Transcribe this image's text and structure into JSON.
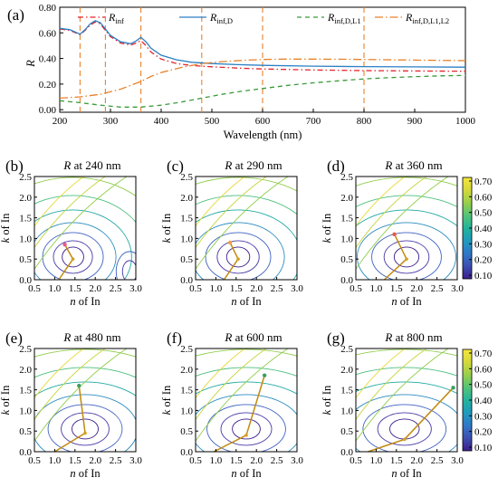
{
  "chart_data": [
    {
      "type": "line",
      "panel_label": "(a)",
      "xlabel": "Wavelength (nm)",
      "ylabel": "R",
      "xlim": [
        200,
        1000
      ],
      "ylim": [
        -0.02,
        0.8
      ],
      "xticks": [
        200,
        300,
        400,
        500,
        600,
        700,
        800,
        900,
        1000
      ],
      "yticks": [
        0.0,
        0.2,
        0.4,
        0.6,
        0.8
      ],
      "ytick_labels": [
        "0.00",
        "0.20",
        "0.40",
        "0.60",
        "0.80"
      ],
      "vlines": [
        240,
        290,
        360,
        480,
        600,
        800
      ],
      "legend_position": "top",
      "series": [
        {
          "name": "R",
          "sub": "inf",
          "color": "#e3262d",
          "dash": "6 3 1.5 3",
          "x": [
            200,
            220,
            240,
            250,
            260,
            270,
            280,
            290,
            300,
            320,
            340,
            350,
            360,
            370,
            380,
            400,
            430,
            460,
            500,
            550,
            600,
            700,
            800,
            900,
            1000
          ],
          "y": [
            0.63,
            0.62,
            0.585,
            0.62,
            0.66,
            0.685,
            0.67,
            0.62,
            0.57,
            0.52,
            0.505,
            0.52,
            0.54,
            0.5,
            0.45,
            0.395,
            0.36,
            0.345,
            0.335,
            0.325,
            0.318,
            0.31,
            0.305,
            0.302,
            0.3
          ]
        },
        {
          "name": "R",
          "sub": "inf,D",
          "color": "#2c7fc4",
          "dash": "",
          "x": [
            200,
            220,
            240,
            250,
            260,
            270,
            280,
            290,
            300,
            320,
            340,
            350,
            360,
            370,
            380,
            400,
            430,
            460,
            500,
            550,
            600,
            700,
            800,
            900,
            1000
          ],
          "y": [
            0.635,
            0.625,
            0.59,
            0.625,
            0.67,
            0.695,
            0.68,
            0.63,
            0.58,
            0.53,
            0.515,
            0.535,
            0.565,
            0.53,
            0.48,
            0.425,
            0.39,
            0.37,
            0.36,
            0.352,
            0.346,
            0.34,
            0.336,
            0.334,
            0.332
          ]
        },
        {
          "name": "R",
          "sub": "inf,D,L1",
          "color": "#3a9a3a",
          "dash": "5 4",
          "x": [
            200,
            240,
            280,
            320,
            360,
            400,
            440,
            480,
            520,
            560,
            600,
            650,
            700,
            750,
            800,
            850,
            900,
            950,
            1000
          ],
          "y": [
            0.07,
            0.055,
            0.035,
            0.02,
            0.02,
            0.035,
            0.06,
            0.09,
            0.12,
            0.145,
            0.165,
            0.19,
            0.21,
            0.225,
            0.24,
            0.25,
            0.258,
            0.264,
            0.268
          ]
        },
        {
          "name": "R",
          "sub": "inf,D,L1,L2",
          "color": "#e8822a",
          "dash": "9 3 1.5 3",
          "x": [
            200,
            240,
            280,
            320,
            360,
            380,
            400,
            440,
            480,
            520,
            560,
            600,
            650,
            700,
            750,
            800,
            900,
            1000
          ],
          "y": [
            0.09,
            0.1,
            0.12,
            0.16,
            0.22,
            0.26,
            0.29,
            0.33,
            0.36,
            0.375,
            0.385,
            0.392,
            0.395,
            0.395,
            0.394,
            0.392,
            0.387,
            0.383
          ]
        }
      ]
    },
    {
      "type": "contour",
      "panel_label": "(b)",
      "title_var": "R",
      "title_rest": " at 240 nm",
      "xlabel_var": "n",
      "xlabel_rest": " of In",
      "ylabel_var": "k",
      "ylabel_rest": " of In",
      "xlim": [
        0.5,
        3.0
      ],
      "ylim": [
        0,
        2.5
      ],
      "colorbar": false,
      "path": [
        [
          1.1,
          0.0
        ],
        [
          1.45,
          0.5
        ],
        [
          1.25,
          0.85
        ]
      ],
      "start_marker_color": "#d4a020",
      "end_marker_color": "#e85a8a"
    },
    {
      "type": "contour",
      "panel_label": "(c)",
      "title_var": "R",
      "title_rest": " at 290 nm",
      "xlabel_var": "n",
      "xlabel_rest": " of In",
      "ylabel_var": "k",
      "ylabel_rest": " of In",
      "xlim": [
        0.5,
        3.0
      ],
      "ylim": [
        0,
        2.5
      ],
      "colorbar": false,
      "path": [
        [
          1.2,
          0.0
        ],
        [
          1.55,
          0.5
        ],
        [
          1.35,
          0.9
        ]
      ],
      "start_marker_color": "#d4a020",
      "end_marker_color": "#e8a050"
    },
    {
      "type": "contour",
      "panel_label": "(d)",
      "title_var": "R",
      "title_rest": " at 360 nm",
      "xlabel_var": "n",
      "xlabel_rest": " of In",
      "ylabel_var": "k",
      "ylabel_rest": " of In",
      "xlim": [
        0.5,
        3.0
      ],
      "ylim": [
        0,
        2.5
      ],
      "colorbar": true,
      "colorbar_ticks": [
        "0.70",
        "0.60",
        "0.50",
        "0.40",
        "0.30",
        "0.20",
        "0.10"
      ],
      "path": [
        [
          1.2,
          0.0
        ],
        [
          1.75,
          0.5
        ],
        [
          1.45,
          1.1
        ]
      ],
      "start_marker_color": "#d4a020",
      "end_marker_color": "#e85a3a"
    },
    {
      "type": "contour",
      "panel_label": "(e)",
      "title_var": "R",
      "title_rest": " at 480 nm",
      "xlabel_var": "n",
      "xlabel_rest": " of In",
      "ylabel_var": "k",
      "ylabel_rest": " of In",
      "xlim": [
        0.5,
        3.0
      ],
      "ylim": [
        0,
        2.5
      ],
      "colorbar": false,
      "path": [
        [
          1.0,
          0.0
        ],
        [
          1.75,
          0.45
        ],
        [
          1.6,
          1.6
        ]
      ],
      "start_marker_color": "#d4a020",
      "end_marker_color": "#3aa060"
    },
    {
      "type": "contour",
      "panel_label": "(f)",
      "title_var": "R",
      "title_rest": " at 600 nm",
      "xlabel_var": "n",
      "xlabel_rest": " of In",
      "ylabel_var": "k",
      "ylabel_rest": " of In",
      "xlim": [
        0.5,
        3.0
      ],
      "ylim": [
        0,
        2.5
      ],
      "colorbar": false,
      "path": [
        [
          0.95,
          0.0
        ],
        [
          1.75,
          0.4
        ],
        [
          2.2,
          1.85
        ]
      ],
      "start_marker_color": "#d4a020",
      "end_marker_color": "#3aa060"
    },
    {
      "type": "contour",
      "panel_label": "(g)",
      "title_var": "R",
      "title_rest": " at 800 nm",
      "xlabel_var": "n",
      "xlabel_rest": " of In",
      "ylabel_var": "k",
      "ylabel_rest": " of In",
      "xlim": [
        0.5,
        3.0
      ],
      "ylim": [
        0,
        2.5
      ],
      "colorbar": true,
      "colorbar_ticks": [
        "0.70",
        "0.60",
        "0.50",
        "0.40",
        "0.30",
        "0.20",
        "0.10"
      ],
      "path": [
        [
          0.8,
          0.0
        ],
        [
          1.7,
          0.3
        ],
        [
          2.9,
          1.55
        ]
      ],
      "start_marker_color": "#d4a020",
      "end_marker_color": "#3aa060"
    }
  ],
  "contour_colors": [
    "#3b1c8c",
    "#4a3aa8",
    "#3f63c2",
    "#2c8cbf",
    "#21a9a4",
    "#4cbf7c",
    "#8fcd4a",
    "#c6d43a",
    "#e8d83a"
  ],
  "colorbar_colors": [
    "#3b1c8c",
    "#3d4eb0",
    "#2f78c8",
    "#1f9bbd",
    "#22b49c",
    "#52c478",
    "#98cf4a",
    "#d4d93a",
    "#f5e73a"
  ]
}
